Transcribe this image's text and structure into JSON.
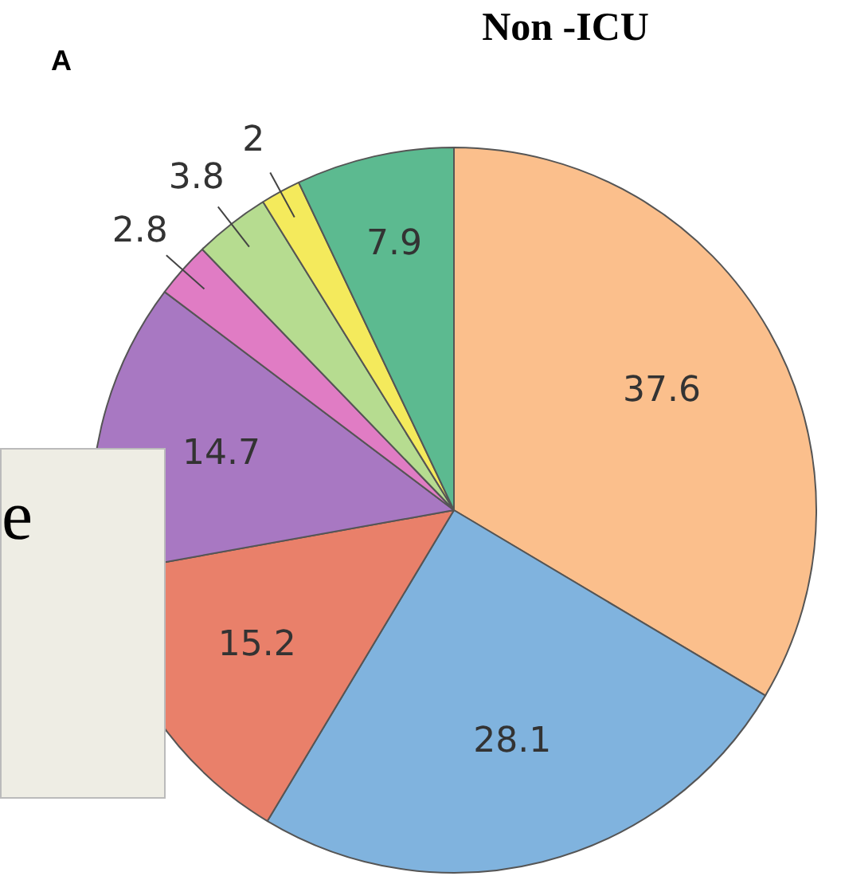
{
  "chart_data": {
    "type": "pie",
    "title": "Non -ICU",
    "categories": [
      null,
      null,
      null,
      null,
      null,
      null,
      null,
      null
    ],
    "values": [
      37.6,
      28.1,
      15.2,
      14.7,
      2.8,
      3.8,
      2,
      7.9
    ],
    "colors": [
      "#fbbf8c",
      "#80b3de",
      "#e9806a",
      "#a878c2",
      "#e07cc4",
      "#b6dc90",
      "#f4ea5c",
      "#5cba90"
    ],
    "data_labels": true,
    "annotations": [
      "A",
      "e"
    ]
  }
}
